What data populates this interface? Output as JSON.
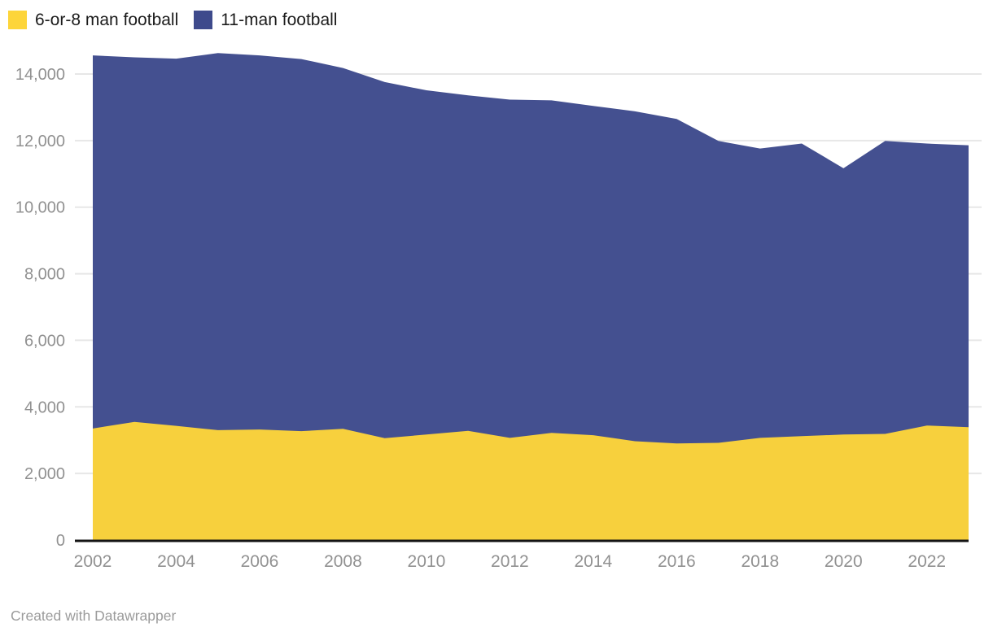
{
  "legend": {
    "items": [
      {
        "label": "6-or-8 man football",
        "color": "#fdd53a"
      },
      {
        "label": "11-man football",
        "color": "#3e4a8c"
      }
    ]
  },
  "footer": {
    "credit": "Created with Datawrapper"
  },
  "chart_data": {
    "type": "area",
    "stacked": true,
    "title": "",
    "xlabel": "",
    "ylabel": "",
    "x": [
      2002,
      2003,
      2004,
      2005,
      2006,
      2007,
      2008,
      2009,
      2010,
      2011,
      2012,
      2013,
      2014,
      2015,
      2016,
      2017,
      2018,
      2019,
      2020,
      2021,
      2022,
      2023
    ],
    "series": [
      {
        "name": "6-or-8 man football",
        "color": "#fdd53a",
        "values": [
          3350,
          3550,
          3430,
          3300,
          3320,
          3270,
          3340,
          3060,
          3170,
          3280,
          3070,
          3220,
          3150,
          2970,
          2900,
          2920,
          3070,
          3120,
          3170,
          3190,
          3440,
          3390
        ]
      },
      {
        "name": "11-man football",
        "color": "#3e4a8c",
        "values": [
          11210,
          10950,
          11030,
          11330,
          11240,
          11180,
          10840,
          10700,
          10340,
          10080,
          10160,
          9990,
          9890,
          9910,
          9750,
          9070,
          8690,
          8790,
          8000,
          8800,
          8470,
          8470
        ]
      }
    ],
    "stacked_totals": [
      14560,
      14500,
      14460,
      14630,
      14560,
      14450,
      14180,
      13760,
      13510,
      13360,
      13230,
      13210,
      13040,
      12880,
      12650,
      11990,
      11760,
      11910,
      11170,
      11990,
      11910,
      11860
    ],
    "yticks": [
      0,
      2000,
      4000,
      6000,
      8000,
      10000,
      12000,
      14000
    ],
    "xticks": [
      2002,
      2004,
      2006,
      2008,
      2010,
      2012,
      2014,
      2016,
      2018,
      2020,
      2022
    ],
    "ylim": [
      0,
      14700
    ],
    "grid": "horizontal",
    "legend_position": "top-left",
    "colors": {
      "grid": "#e7e7e7",
      "axis_baseline": "#141414",
      "tick_label": "#919191"
    }
  }
}
